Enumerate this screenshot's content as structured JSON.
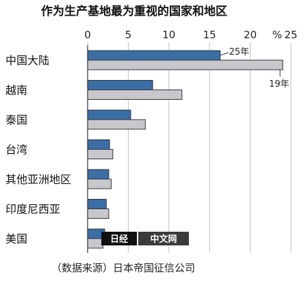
{
  "chart_data": {
    "type": "bar",
    "orientation": "horizontal",
    "title": "作为生产基地最为重视的国家和地区",
    "unit": "%",
    "xlim": [
      0,
      25
    ],
    "xticks": [
      "0",
      "5",
      "10",
      "15",
      "20",
      "25"
    ],
    "categories": [
      "中国大陆",
      "越南",
      "泰国",
      "台湾",
      "其他亚洲地区",
      "印度尼西亚",
      "美国"
    ],
    "series": [
      {
        "name": "25年",
        "color": "#3a6ea5",
        "values": [
          16.3,
          8.0,
          5.3,
          2.7,
          2.6,
          2.3,
          2.1
        ]
      },
      {
        "name": "19年",
        "color": "#c8c8cc",
        "values": [
          24.0,
          11.6,
          7.1,
          3.1,
          2.9,
          2.6,
          1.9
        ]
      }
    ],
    "grid": true,
    "source": "（数据来源）日本帝国征信公司"
  },
  "watermark": {
    "logo": "日经",
    "text": "中文网"
  }
}
